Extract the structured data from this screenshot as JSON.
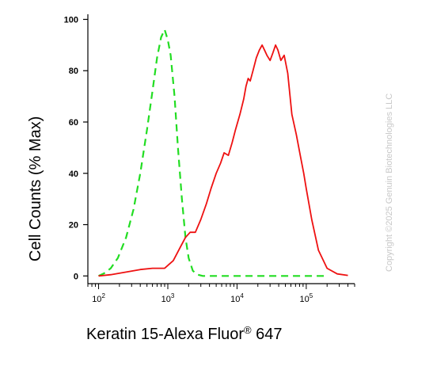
{
  "chart_data": {
    "type": "line",
    "ylabel": "Cell Counts (% Max)",
    "xlabel": {
      "main": "Keratin 15-Alexa Fluor",
      "sup": "®",
      "suffix": " 647"
    },
    "x_scale": "log",
    "xlim": [
      70,
      500000
    ],
    "ylim": [
      -3,
      102
    ],
    "y_ticks": [
      0,
      20,
      40,
      60,
      80,
      100
    ],
    "y_tick_labels": [
      "0",
      "20",
      "40",
      "60",
      "80",
      "100"
    ],
    "x_ticks": [
      100,
      1000,
      10000,
      100000
    ],
    "x_tick_labels": [
      {
        "base": "10",
        "exp": "2"
      },
      {
        "base": "10",
        "exp": "3"
      },
      {
        "base": "10",
        "exp": "4"
      },
      {
        "base": "10",
        "exp": "5"
      }
    ],
    "grid": false,
    "series": [
      {
        "color": "#22dd22",
        "dash": "dashed",
        "points": [
          [
            100,
            0
          ],
          [
            120,
            1
          ],
          [
            150,
            3
          ],
          [
            190,
            7
          ],
          [
            250,
            15
          ],
          [
            320,
            26
          ],
          [
            400,
            40
          ],
          [
            500,
            57
          ],
          [
            600,
            72
          ],
          [
            700,
            85
          ],
          [
            800,
            93
          ],
          [
            900,
            96
          ],
          [
            1000,
            92
          ],
          [
            1100,
            86
          ],
          [
            1250,
            70
          ],
          [
            1400,
            50
          ],
          [
            1600,
            30
          ],
          [
            1800,
            15
          ],
          [
            2000,
            7
          ],
          [
            2300,
            2
          ],
          [
            2700,
            0.5
          ],
          [
            3200,
            0
          ],
          [
            10000,
            0
          ],
          [
            100000,
            0
          ],
          [
            200000,
            0
          ]
        ]
      },
      {
        "color": "#ee1111",
        "dash": "solid",
        "points": [
          [
            100,
            0
          ],
          [
            150,
            0.5
          ],
          [
            250,
            1.5
          ],
          [
            400,
            2.5
          ],
          [
            600,
            3
          ],
          [
            900,
            3
          ],
          [
            1200,
            6
          ],
          [
            1500,
            11
          ],
          [
            1800,
            15
          ],
          [
            2100,
            17
          ],
          [
            2500,
            17
          ],
          [
            3000,
            22
          ],
          [
            3600,
            28
          ],
          [
            4200,
            34
          ],
          [
            5000,
            40
          ],
          [
            5800,
            44
          ],
          [
            6500,
            48
          ],
          [
            7500,
            47
          ],
          [
            8500,
            52
          ],
          [
            9500,
            57
          ],
          [
            11000,
            63
          ],
          [
            12500,
            69
          ],
          [
            13500,
            74
          ],
          [
            14500,
            77
          ],
          [
            15500,
            76
          ],
          [
            17000,
            80
          ],
          [
            19000,
            85
          ],
          [
            21000,
            88
          ],
          [
            23000,
            90
          ],
          [
            25000,
            88
          ],
          [
            27000,
            86
          ],
          [
            30000,
            84
          ],
          [
            33000,
            87
          ],
          [
            36000,
            90
          ],
          [
            39000,
            88
          ],
          [
            43000,
            84
          ],
          [
            48000,
            86
          ],
          [
            54000,
            79
          ],
          [
            62000,
            63
          ],
          [
            72000,
            55
          ],
          [
            82000,
            47
          ],
          [
            92000,
            40
          ],
          [
            100000,
            34
          ],
          [
            120000,
            22
          ],
          [
            150000,
            10
          ],
          [
            200000,
            3
          ],
          [
            280000,
            0.8
          ],
          [
            400000,
            0.2
          ]
        ]
      }
    ]
  },
  "watermark": "Copyright ©2025 Genuin Biotechnologies LLC"
}
